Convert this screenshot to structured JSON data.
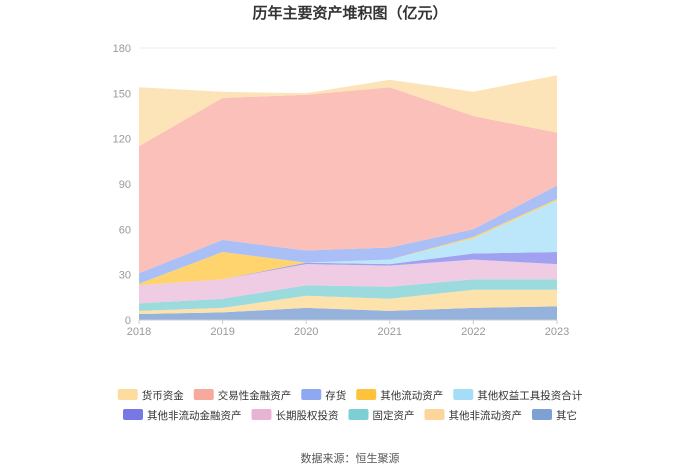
{
  "chart_data": {
    "type": "area",
    "stacked": true,
    "title": "历年主要资产堆积图（亿元）",
    "x": [
      "2018",
      "2019",
      "2020",
      "2021",
      "2022",
      "2023"
    ],
    "ylim": [
      0,
      180
    ],
    "yticks": [
      "0",
      "30",
      "60",
      "90",
      "120",
      "150",
      "180"
    ],
    "grid": true,
    "legend_position": "bottom",
    "source": "数据来源：恒生聚源",
    "series": [
      {
        "name": "其它",
        "color": "#8eaed9",
        "values": [
          4,
          5,
          8,
          6,
          8,
          9
        ]
      },
      {
        "name": "其他非流动资产",
        "color": "#fde0a8",
        "values": [
          2,
          3,
          8,
          8,
          12,
          11
        ]
      },
      {
        "name": "固定资产",
        "color": "#96d9dc",
        "values": [
          5,
          6,
          7,
          8,
          7,
          7
        ]
      },
      {
        "name": "长期股权投资",
        "color": "#eec9e2",
        "values": [
          12,
          13,
          14,
          14,
          13,
          10
        ]
      },
      {
        "name": "其他非流动金融资产",
        "color": "#9b9df0",
        "values": [
          0,
          0,
          1,
          1,
          4,
          8
        ]
      },
      {
        "name": "其他权益工具投资合计",
        "color": "#b8e6fb",
        "values": [
          0,
          0,
          0,
          3,
          10,
          34
        ]
      },
      {
        "name": "其他流动资产",
        "color": "#ffd266",
        "values": [
          1,
          18,
          0,
          0,
          1,
          1
        ]
      },
      {
        "name": "存货",
        "color": "#a7bcf7",
        "values": [
          7,
          8,
          8,
          8,
          5,
          9
        ]
      },
      {
        "name": "交易性金融资产",
        "color": "#fabdb5",
        "values": [
          84,
          94,
          103,
          106,
          75,
          35
        ]
      },
      {
        "name": "货币资金",
        "color": "#fde3b4",
        "values": [
          39,
          4,
          1,
          5,
          16,
          38
        ]
      }
    ],
    "legend_order": [
      "货币资金",
      "交易性金融资产",
      "存货",
      "其他流动资产",
      "其他权益工具投资合计",
      "其他非流动金融资产",
      "长期股权投资",
      "固定资产",
      "其他非流动资产",
      "其它"
    ],
    "legend_colors": {
      "货币资金": "#fddca0",
      "交易性金融资产": "#f7a99e",
      "存货": "#8ea8f2",
      "其他流动资产": "#ffc23d",
      "其他权益工具投资合计": "#a5ddf7",
      "其他非流动金融资产": "#7777e6",
      "长期股权投资": "#e8b4d6",
      "固定资产": "#7ccfd3",
      "其他非流动资产": "#fdd59a",
      "其它": "#7da1d3"
    }
  }
}
